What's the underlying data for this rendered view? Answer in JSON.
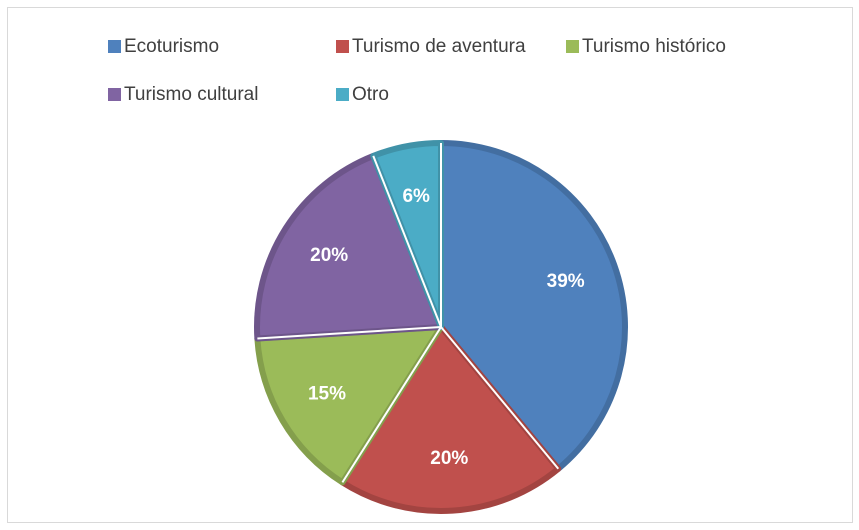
{
  "chart_data": {
    "type": "pie",
    "categories": [
      "Ecoturismo",
      "Turismo de aventura",
      "Turismo histórico",
      "Turismo cultural",
      "Otro"
    ],
    "values": [
      39,
      20,
      15,
      20,
      6
    ],
    "value_labels": [
      "39%",
      "20%",
      "15%",
      "20%",
      "6%"
    ],
    "colors": [
      "#4f81bd",
      "#c0504d",
      "#9bbb59",
      "#8064a2",
      "#4bacc6"
    ],
    "legend": "top"
  }
}
